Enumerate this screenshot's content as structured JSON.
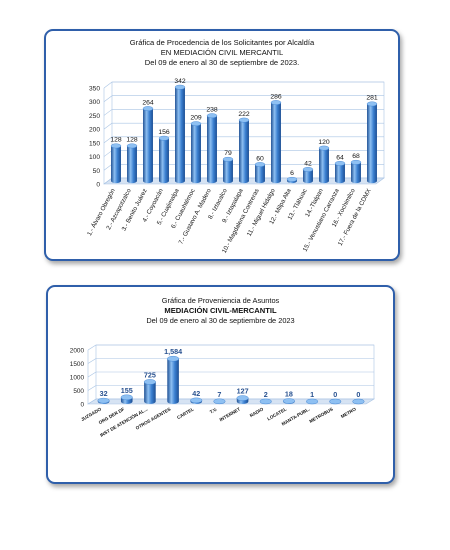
{
  "colors": {
    "border": "#2f5faa",
    "bar_main": "#3a7fd0",
    "bar_light": "#8ec0f2",
    "bar_dark": "#1d4f93",
    "grid": "#a9c4e4",
    "floor": "#d6e3f3",
    "value_label_chart2": "#27508f"
  },
  "chart_data": [
    {
      "type": "bar",
      "title_lines": [
        "Gráfica de Procedencia de los Solicitantes por Alcaldía",
        "EN MEDIACIÓN CIVIL MERCANTIL",
        "Del 09 de enero al 30 de septiembre de 2023."
      ],
      "categories": [
        "1.- Álvaro Obregón",
        "2.- Azcapotzalco",
        "3.- Benito Juárez",
        "4.- Coyoacán",
        "5.- Cuajimalpa",
        "6.- Cuauhtémoc",
        "7.- Gustavo A. Madero",
        "8.- Iztacalco",
        "9.- Iztapalapa",
        "10.- Magdalena Contreras",
        "11.- Miguel Hidalgo",
        "12.- Milpa Alta",
        "13.- Tláhuac",
        "14.-Tlalpan",
        "15.- Venustiano Carranza",
        "16.- Xochimilco",
        "17.- Fuera de la CDMX"
      ],
      "values": [
        128,
        128,
        264,
        156,
        342,
        209,
        238,
        79,
        222,
        60,
        286,
        6,
        42,
        120,
        64,
        68,
        281
      ],
      "value_labels": [
        "128",
        "128",
        "264",
        "156",
        "342",
        "209",
        "238",
        "79",
        "222",
        "60",
        "286",
        "6",
        "42",
        "120",
        "64",
        "68",
        "281"
      ],
      "ylim": [
        0,
        350
      ],
      "yticks": [
        "0",
        "50",
        "100",
        "150",
        "200",
        "250",
        "300",
        "350"
      ],
      "grid": true,
      "style": "3d-cylinder"
    },
    {
      "type": "bar",
      "title_lines": [
        "Gráfica de Proveniencia de Asuntos",
        "MEDIACIÓN CIVIL-MERCANTIL",
        "Del  09 de enero al  30 de septiembre de  2023"
      ],
      "categories": [
        "JUZGADO",
        "ORG DER DF",
        "INST DE ATENCIÓN AL...",
        "OTROS AGENTES",
        "CARTEL",
        "T.V.",
        "INTERNET",
        "RADIO",
        "LOCATEL",
        "MANTA-PUBL.",
        "METROBUS",
        "METRO"
      ],
      "values": [
        32,
        155,
        725,
        1584,
        42,
        7,
        127,
        2,
        18,
        1,
        0,
        0
      ],
      "value_labels": [
        "32",
        "155",
        "725",
        "1,584",
        "42",
        "7",
        "127",
        "2",
        "18",
        "1",
        "0",
        "0"
      ],
      "ylim": [
        0,
        2000
      ],
      "yticks": [
        "0",
        "500",
        "1000",
        "1500",
        "2000"
      ],
      "grid": true,
      "style": "3d-cylinder"
    }
  ]
}
